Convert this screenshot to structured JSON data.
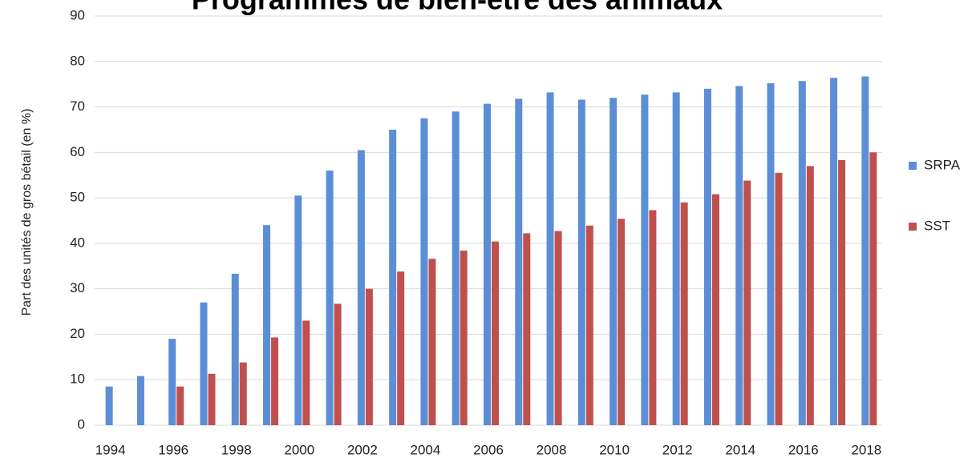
{
  "chart_data": {
    "type": "bar",
    "title": "Programmes de bien-être des animaux",
    "y_label": "Part des unités de gros bétail (en %)",
    "categories": [
      "1994",
      null,
      "1996",
      null,
      "1998",
      null,
      "2000",
      null,
      "2002",
      null,
      "2004",
      null,
      "2006",
      null,
      "2008",
      null,
      "2010",
      null,
      "2012",
      null,
      "2014",
      null,
      "2016",
      null,
      "2018"
    ],
    "series": [
      {
        "name": "SRPA",
        "color": "#5b8ed6",
        "values": [
          8.5,
          10.8,
          19,
          27,
          33.3,
          44,
          50.5,
          56,
          60.5,
          65,
          67.5,
          69,
          70.7,
          71.8,
          73.2,
          71.6,
          72,
          72.7,
          73.2,
          74,
          74.6,
          75.2,
          75.7,
          76.4,
          76.7
        ]
      },
      {
        "name": "SST",
        "color": "#c0504d",
        "values": [
          null,
          null,
          8.5,
          11.3,
          13.8,
          19.3,
          23,
          26.7,
          30,
          33.8,
          36.6,
          38.4,
          40.4,
          42.2,
          42.7,
          43.9,
          45.4,
          47.3,
          49,
          50.8,
          53.8,
          55.5,
          57,
          58.3,
          60
        ]
      }
    ],
    "ylim": [
      0,
      90
    ],
    "yticks": [
      0,
      10,
      20,
      30,
      40,
      50,
      60,
      70,
      80,
      90
    ],
    "grid": true,
    "legend": "right"
  }
}
